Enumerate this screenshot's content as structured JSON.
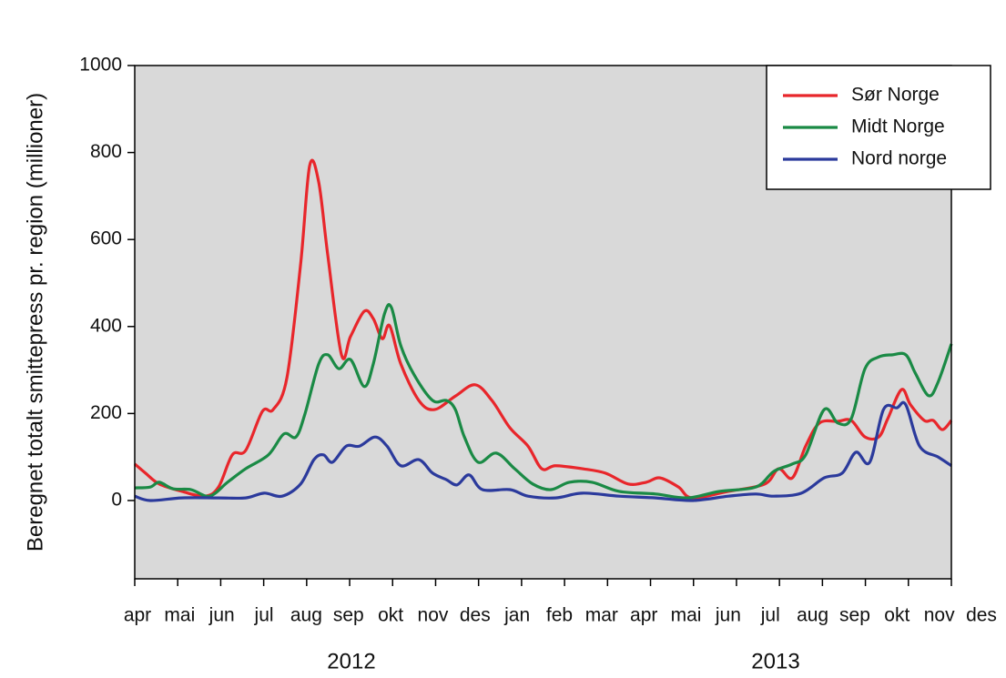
{
  "chart_data": {
    "type": "line",
    "y_label": "Beregnet totalt smittepress pr. region (millioner)",
    "categories": [
      "apr",
      "mai",
      "jun",
      "jul",
      "aug",
      "sep",
      "okt",
      "nov",
      "des",
      "jan",
      "feb",
      "mar",
      "apr",
      "mai",
      "jun",
      "jul",
      "aug",
      "sep",
      "okt",
      "nov",
      "des"
    ],
    "annotations": [
      "2012",
      "2013"
    ],
    "xlim": [
      0,
      19
    ],
    "xticks": [
      0,
      1,
      2,
      3,
      4,
      5,
      6,
      7,
      8,
      9,
      10,
      11,
      12,
      13,
      14,
      15,
      16,
      17,
      18,
      19
    ],
    "ylim": [
      -180,
      1000
    ],
    "yticks": [
      0,
      200,
      400,
      600,
      800,
      1000
    ],
    "legend": "upper right",
    "background": "#d9d9d9",
    "series": [
      {
        "name": "Sør Norge",
        "color": "#e8262b",
        "x": [
          0,
          0.25,
          0.57,
          1.1,
          1.63,
          1.95,
          2.27,
          2.58,
          2.97,
          3.22,
          3.54,
          3.86,
          4.07,
          4.28,
          4.49,
          4.81,
          5.02,
          5.34,
          5.55,
          5.76,
          5.93,
          6.19,
          6.61,
          6.97,
          7.46,
          7.92,
          8.31,
          8.73,
          9.15,
          9.47,
          9.79,
          10.42,
          10.95,
          11.48,
          11.9,
          12.22,
          12.65,
          12.97,
          13.81,
          14.66,
          14.98,
          15.3,
          15.61,
          15.93,
          16.36,
          16.67,
          16.99,
          17.31,
          17.52,
          17.84,
          18.05,
          18.37,
          18.58,
          18.79,
          19.0
        ],
        "values": [
          84,
          63,
          38,
          21,
          10,
          31,
          105,
          115,
          205,
          209,
          282,
          544,
          770,
          732,
          565,
          335,
          377,
          435,
          418,
          372,
          402,
          314,
          230,
          209,
          240,
          266,
          230,
          167,
          125,
          73,
          80,
          73,
          63,
          38,
          42,
          52,
          31,
          6,
          21,
          38,
          73,
          52,
          125,
          178,
          182,
          184,
          146,
          146,
          188,
          255,
          220,
          184,
          184,
          163,
          184
        ]
      },
      {
        "name": "Midt Norge",
        "color": "#1a8a45",
        "x": [
          0,
          0.36,
          0.57,
          0.89,
          1.31,
          1.74,
          2.16,
          2.58,
          3.11,
          3.47,
          3.75,
          3.96,
          4.28,
          4.49,
          4.75,
          5.02,
          5.34,
          5.55,
          5.81,
          5.97,
          6.19,
          6.5,
          6.93,
          7.25,
          7.46,
          7.67,
          7.99,
          8.41,
          8.84,
          9.26,
          9.68,
          10.11,
          10.64,
          11.27,
          12.12,
          12.86,
          13.6,
          14.45,
          14.87,
          15.3,
          15.61,
          16.04,
          16.36,
          16.67,
          16.99,
          17.31,
          17.63,
          17.94,
          18.16,
          18.47,
          18.69,
          19.0
        ],
        "values": [
          29,
          31,
          42,
          27,
          25,
          10,
          42,
          73,
          105,
          153,
          146,
          199,
          314,
          335,
          303,
          324,
          262,
          314,
          429,
          444,
          356,
          289,
          230,
          230,
          209,
          146,
          88,
          109,
          73,
          38,
          25,
          42,
          42,
          21,
          15,
          6,
          21,
          31,
          67,
          84,
          105,
          209,
          178,
          188,
          303,
          330,
          335,
          335,
          293,
          241,
          272,
          360
        ]
      },
      {
        "name": "Nord norge",
        "color": "#2b3a9c",
        "x": [
          0,
          0.36,
          1.1,
          1.95,
          2.58,
          3.01,
          3.43,
          3.86,
          4.17,
          4.39,
          4.6,
          4.92,
          5.23,
          5.59,
          5.87,
          6.19,
          6.61,
          6.93,
          7.25,
          7.5,
          7.78,
          8.09,
          8.73,
          9.15,
          9.79,
          10.42,
          11.27,
          12.12,
          12.97,
          13.81,
          14.45,
          14.87,
          15.51,
          16.04,
          16.46,
          16.78,
          17.1,
          17.42,
          17.73,
          17.94,
          18.26,
          18.69,
          19.0
        ],
        "values": [
          10,
          0,
          6,
          6,
          6,
          17,
          10,
          38,
          94,
          105,
          88,
          125,
          125,
          146,
          125,
          80,
          94,
          63,
          48,
          36,
          59,
          25,
          25,
          10,
          6,
          17,
          10,
          6,
          0,
          10,
          15,
          10,
          17,
          52,
          63,
          111,
          88,
          209,
          213,
          220,
          125,
          100,
          80
        ]
      }
    ]
  }
}
